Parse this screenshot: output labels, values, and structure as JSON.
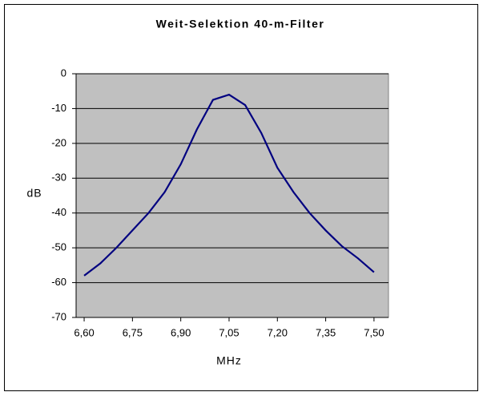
{
  "chart_data": {
    "type": "line",
    "title": "Weit-Selektion 40-m-Filter",
    "x_label": "MHz",
    "y_label": "dB",
    "x": [
      6.6,
      6.65,
      6.7,
      6.75,
      6.8,
      6.85,
      6.9,
      6.95,
      7.0,
      7.05,
      7.1,
      7.15,
      7.2,
      7.25,
      7.3,
      7.35,
      7.4,
      7.45,
      7.5
    ],
    "series": [
      {
        "name": "dB",
        "color": "#000080",
        "values": [
          -58,
          -54.5,
          -50,
          -45,
          -40,
          -34,
          -26,
          -16,
          -7.5,
          -6,
          -9,
          -17,
          -27,
          -34,
          -40,
          -45,
          -49.5,
          -53,
          -57
        ]
      }
    ],
    "xlim": [
      6.575,
      7.545
    ],
    "xticks": [
      {
        "value": 6.6,
        "label": "6,60"
      },
      {
        "value": 6.75,
        "label": "6,75"
      },
      {
        "value": 6.9,
        "label": "6,90"
      },
      {
        "value": 7.05,
        "label": "7,05"
      },
      {
        "value": 7.2,
        "label": "7,20"
      },
      {
        "value": 7.35,
        "label": "7,35"
      },
      {
        "value": 7.5,
        "label": "7,50"
      }
    ],
    "ylim": [
      -70,
      0
    ],
    "yticks": [
      -70,
      -60,
      -50,
      -40,
      -30,
      -20,
      -10,
      0
    ],
    "grid": true,
    "plot_background": "#c0c0c0"
  }
}
